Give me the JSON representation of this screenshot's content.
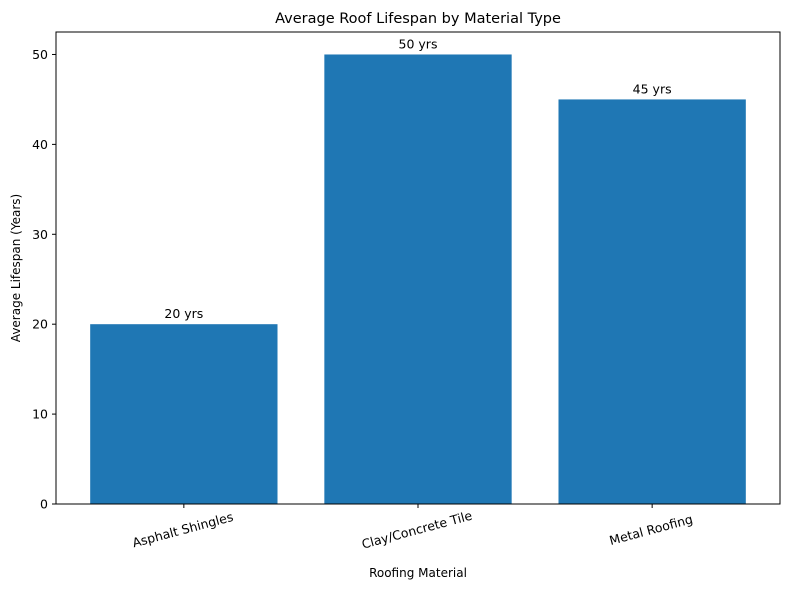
{
  "chart_data": {
    "type": "bar",
    "title": "Average Roof Lifespan by Material Type",
    "xlabel": "Roofing Material",
    "ylabel": "Average Lifespan (Years)",
    "categories": [
      "Asphalt Shingles",
      "Clay/Concrete Tile",
      "Metal Roofing"
    ],
    "values": [
      20,
      50,
      45
    ],
    "data_labels": [
      "20 yrs",
      "50 yrs",
      "45 yrs"
    ],
    "ylim": [
      0,
      52.5
    ],
    "yticks": [
      0,
      10,
      20,
      30,
      40,
      50
    ],
    "grid": false,
    "bar_color": "#1f77b4",
    "xtick_rotation_deg": 15
  }
}
